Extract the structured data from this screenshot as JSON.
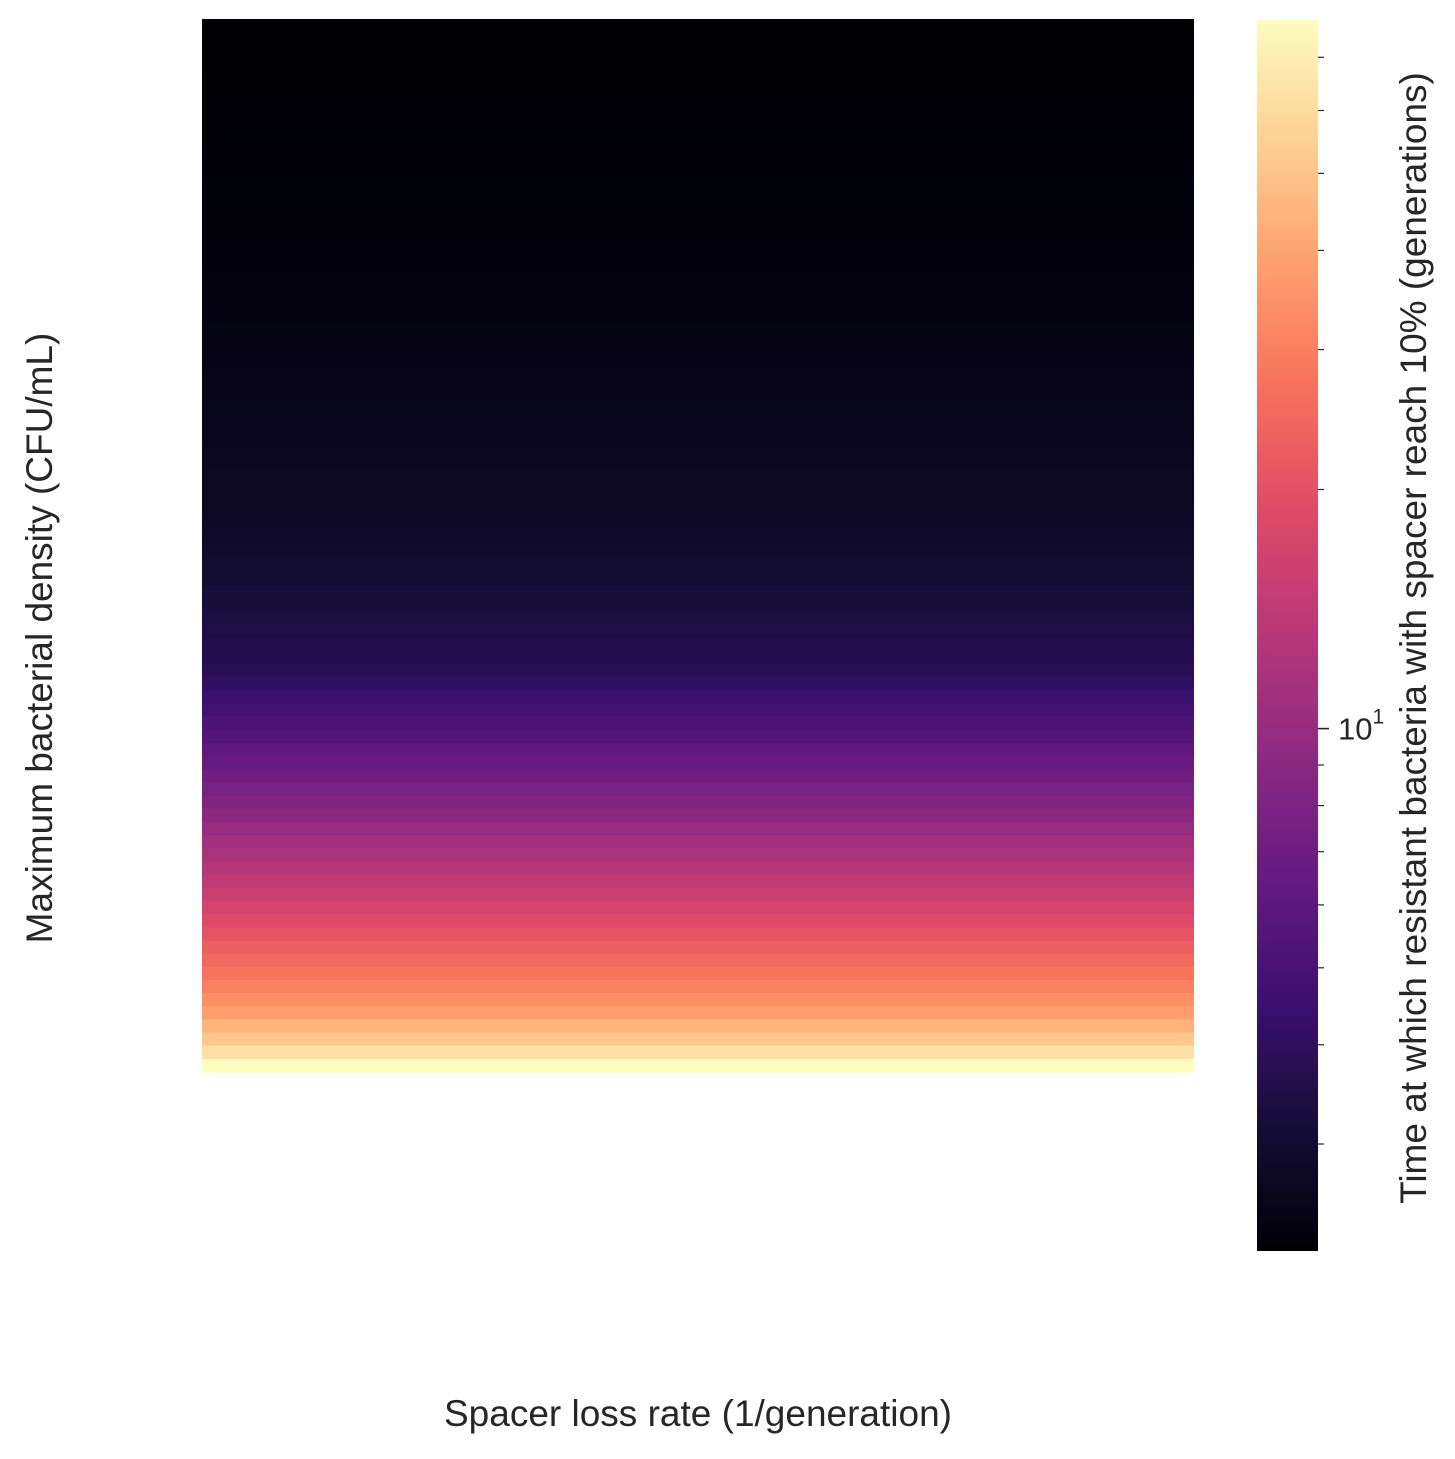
{
  "chart_data": {
    "type": "heatmap",
    "title": "",
    "xlabel": "Spacer loss rate (1/generation)",
    "ylabel": "Maximum bacterial density (CFU/mL)",
    "colorbar": {
      "label": "Time at which resistant bacteria with spacer reach 10% (generations)",
      "scale": "log",
      "colormap": "magma",
      "range": [
        2.2,
        78
      ],
      "major_ticks": [
        {
          "value": 10,
          "base": "10",
          "exponent": "1"
        }
      ],
      "minor_ticks": [
        3,
        4,
        5,
        6,
        7,
        8,
        9,
        20,
        30,
        40,
        50,
        60,
        70
      ]
    },
    "rows_top_to_bottom": 80,
    "columns": 1,
    "profile": {
      "description_free_keys": true,
      "row_fraction": [
        0.0,
        0.25,
        0.45,
        0.55,
        0.62,
        0.68,
        0.75,
        0.83,
        0.9,
        0.95,
        0.98,
        1.0
      ],
      "time_generations": [
        2.2,
        2.35,
        2.7,
        3.2,
        3.8,
        5.5,
        8.5,
        15,
        25,
        38,
        55,
        78
      ]
    },
    "grid": false,
    "legend": "colorbar-right"
  }
}
